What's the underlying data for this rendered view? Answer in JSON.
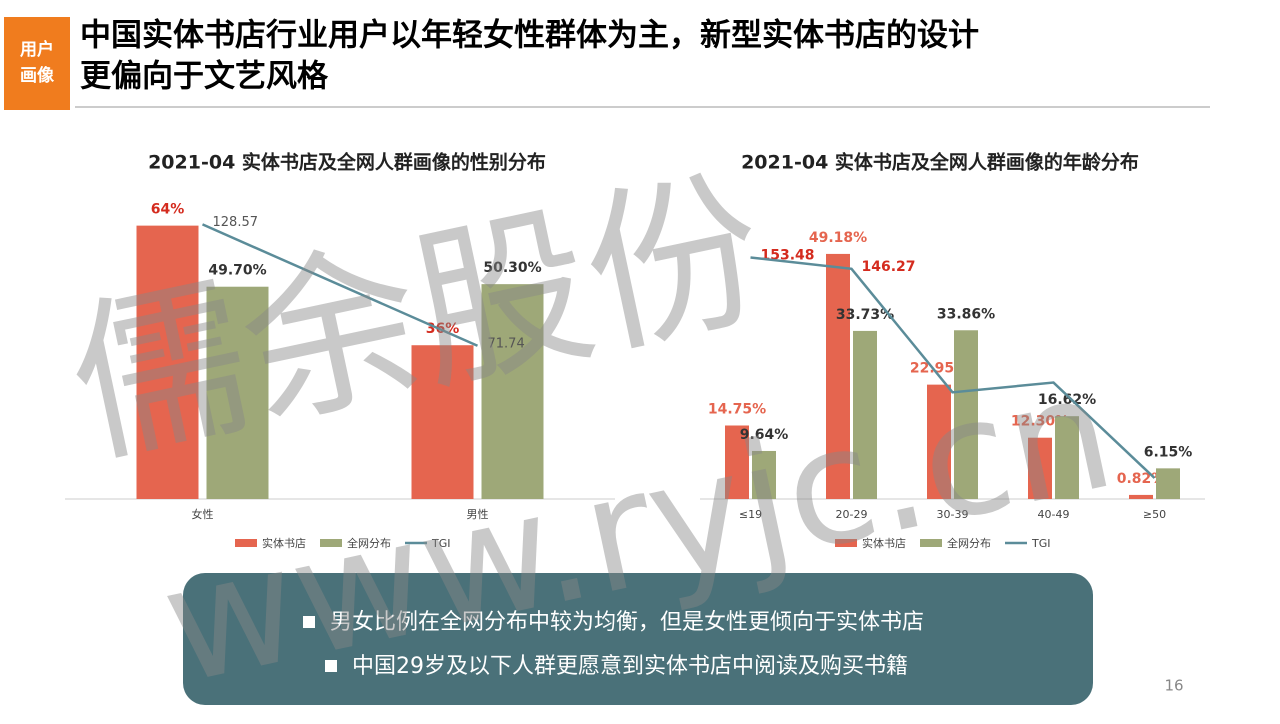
{
  "header": {
    "tag": [
      "用户",
      "画像"
    ],
    "title": [
      "中国实体书店行业用户以年轻女性群体为主，新型实体书店的设计",
      "更偏向于文艺风格"
    ]
  },
  "chart_data": [
    {
      "type": "bar_line",
      "title": "2021-04 实体书店及全网人群画像的性别分布",
      "categories": [
        "女性",
        "男性"
      ],
      "series": [
        {
          "name": "实体书店",
          "color": "#e5654f",
          "values": [
            64,
            36
          ],
          "value_labels": [
            "64%",
            "36%"
          ]
        },
        {
          "name": "全网分布",
          "color": "#9ea878",
          "values": [
            49.7,
            50.3
          ],
          "value_labels": [
            "49.70%",
            "50.30%"
          ]
        },
        {
          "name": "TGI",
          "color": "#5b8c99",
          "axis": "y2",
          "values": [
            128.57,
            71.74
          ]
        }
      ],
      "ylim": [
        0,
        70
      ],
      "y2lim": [
        0,
        140
      ]
    },
    {
      "type": "bar_line",
      "title": "2021-04 实体书店及全网人群画像的年龄分布",
      "categories": [
        "≤19",
        "20-29",
        "30-39",
        "40-49",
        "≥50"
      ],
      "series": [
        {
          "name": "实体书店",
          "color": "#e5654f",
          "values": [
            14.75,
            49.18,
            22.95,
            12.3,
            0.82
          ],
          "value_labels": [
            "14.75%",
            "49.18%",
            "22.95%",
            "12.30%",
            "0.82%"
          ]
        },
        {
          "name": "全网分布",
          "color": "#9ea878",
          "values": [
            9.64,
            33.73,
            33.86,
            16.62,
            6.15
          ],
          "value_labels": [
            "9.64%",
            "33.73%",
            "33.86%",
            "16.62%",
            "6.15%"
          ]
        },
        {
          "name": "TGI",
          "color": "#5b8c99",
          "axis": "y2",
          "values": [
            153.48,
            146.27,
            67.78,
            74.01,
            13.33
          ],
          "value_labels": [
            "153.48",
            "146.27",
            null,
            null,
            null
          ]
        }
      ],
      "ylim": [
        0,
        60
      ],
      "y2lim": [
        0,
        190
      ]
    }
  ],
  "summary": [
    "男女比例在全网分布中较为均衡，但是女性更倾向于实体书店",
    "中国29岁及以下人群更愿意到实体书店中阅读及购买书籍"
  ],
  "page_number": "16",
  "watermark": [
    "儒余股份",
    "www.ryjc.cn"
  ]
}
